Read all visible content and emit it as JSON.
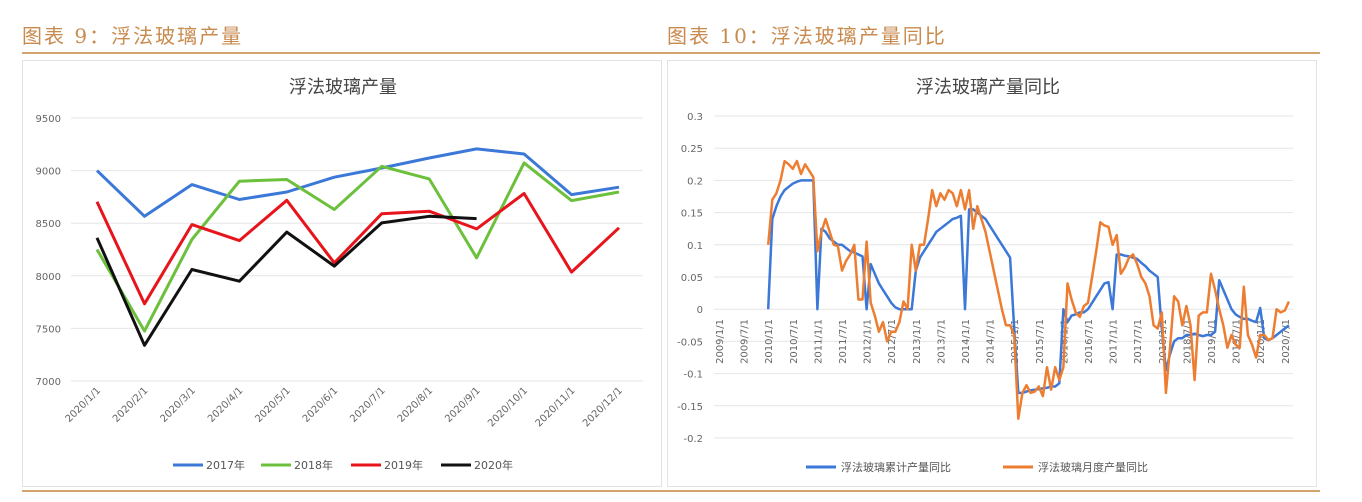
{
  "figures": [
    {
      "heading": "图表 9：浮法玻璃产量"
    },
    {
      "heading": "图表 10：浮法玻璃产量同比"
    }
  ],
  "chart_data": [
    {
      "type": "line",
      "title": "浮法玻璃产量",
      "xlabel": "",
      "ylabel": "",
      "categories": [
        "2020/1/1",
        "2020/2/1",
        "2020/3/1",
        "2020/4/1",
        "2020/5/1",
        "2020/6/1",
        "2020/7/1",
        "2020/8/1",
        "2020/9/1",
        "2020/10/1",
        "2020/11/1",
        "2020/12/1"
      ],
      "yticks": [
        "7000",
        "7500",
        "8000",
        "8500",
        "9000",
        "9500"
      ],
      "ylim": [
        7000,
        9500
      ],
      "grid": true,
      "legend": "bottom",
      "series": [
        {
          "name": "2017年",
          "color": "#3b78d8",
          "values": [
            9000,
            8566,
            8867,
            8725,
            8797,
            8937,
            9025,
            9120,
            9206,
            9158,
            8772,
            8842
          ]
        },
        {
          "name": "2018年",
          "color": "#6cc03c",
          "values": [
            8250,
            7475,
            8345,
            8899,
            8915,
            8630,
            9041,
            8921,
            8171,
            9073,
            8715,
            8797
          ]
        },
        {
          "name": "2019年",
          "color": "#e8141c",
          "values": [
            8703,
            7734,
            8487,
            8335,
            8718,
            8123,
            8589,
            8614,
            8446,
            8782,
            8035,
            8456
          ]
        },
        {
          "name": "2020年",
          "color": "#111111",
          "values": [
            8361,
            7339,
            8060,
            7949,
            8415,
            8092,
            8503,
            8566,
            8544,
            null,
            null,
            null
          ]
        }
      ]
    },
    {
      "type": "line",
      "title": "浮法玻璃产量同比",
      "xlabel": "",
      "ylabel": "",
      "xticks": [
        "2009/1/1",
        "2009/7/1",
        "2010/1/1",
        "2010/7/1",
        "2011/1/1",
        "2011/7/1",
        "2012/1/1",
        "2012/7/1",
        "2013/1/1",
        "2013/7/1",
        "2014/1/1",
        "2014/7/1",
        "2015/1/1",
        "2015/7/1",
        "2016/1/1",
        "2016/7/1",
        "2017/1/1",
        "2017/7/1",
        "2018/1/1",
        "2018/7/1",
        "2019/1/1",
        "2019/7/1",
        "2020/1/1",
        "2020/7/1"
      ],
      "yticks": [
        "-0.2",
        "-0.15",
        "-0.1",
        "-0.05",
        "0",
        "0.05",
        "0.1",
        "0.15",
        "0.2",
        "0.25",
        "0.3"
      ],
      "ylim": [
        -0.2,
        0.3
      ],
      "grid": true,
      "legend": "bottom",
      "frequency": "monthly",
      "series": [
        {
          "name": "浮法玻璃累计产量同比",
          "color": "#3b78d8",
          "values_by_year": {
            "2010": [
              0,
              0.14,
              0.16,
              0.175,
              0.185,
              0.19,
              0.195,
              0.198,
              0.2,
              0.2,
              0.2,
              0.2
            ],
            "2011": [
              0,
              0.125,
              0.12,
              0.11,
              0.105,
              0.1,
              0.1,
              0.095,
              0.09,
              0.088,
              0.085,
              0.082
            ],
            "2012": [
              0,
              0.07,
              0.055,
              0.04,
              0.03,
              0.02,
              0.01,
              0.003,
              0,
              0,
              0,
              0
            ],
            "2013": [
              0.06,
              0.08,
              0.09,
              0.1,
              0.11,
              0.12,
              0.125,
              0.13,
              0.135,
              0.14,
              0.142,
              0.145
            ],
            "2014": [
              0,
              0.155,
              0.155,
              0.15,
              0.145,
              0.14,
              0.13,
              0.12,
              0.11,
              0.1,
              0.09,
              0.08
            ],
            "2015": [
              -0.03,
              -0.13,
              -0.13,
              -0.128,
              -0.126,
              -0.125,
              -0.124,
              -0.123,
              -0.122,
              -0.12,
              -0.12,
              -0.115
            ],
            "2016": [
              0,
              -0.02,
              -0.01,
              -0.008,
              -0.005,
              -0.005,
              0,
              0.01,
              0.02,
              0.03,
              0.04,
              0.042
            ],
            "2017": [
              0,
              0.085,
              0.085,
              0.083,
              0.082,
              0.08,
              0.078,
              0.072,
              0.067,
              0.06,
              0.055,
              0.05
            ],
            "2018": [
              -0.03,
              -0.095,
              -0.07,
              -0.05,
              -0.045,
              -0.045,
              -0.04,
              -0.04,
              -0.038,
              -0.04,
              -0.042,
              -0.04
            ],
            "2019": [
              -0.04,
              -0.035,
              0.045,
              0.03,
              0.015,
              0,
              -0.008,
              -0.012,
              -0.015,
              -0.015,
              -0.018,
              -0.02
            ],
            "2020": [
              0.002,
              -0.045,
              -0.048,
              -0.045,
              -0.04,
              -0.035,
              -0.03,
              -0.025
            ]
          }
        },
        {
          "name": "浮法玻璃月度产量同比",
          "color": "#ed7d31",
          "values_by_year": {
            "2010": [
              0.1,
              0.17,
              0.18,
              0.2,
              0.23,
              0.225,
              0.218,
              0.23,
              0.21,
              0.225,
              0.215,
              0.205
            ],
            "2011": [
              0.09,
              0.12,
              0.14,
              0.12,
              0.1,
              0.098,
              0.06,
              0.075,
              0.085,
              0.1,
              0.015,
              0.015
            ],
            "2012": [
              0.105,
              0.01,
              -0.01,
              -0.035,
              -0.02,
              -0.05,
              -0.035,
              -0.035,
              -0.02,
              0.012,
              0,
              0.1
            ],
            "2013": [
              0.06,
              0.1,
              0.1,
              0.14,
              0.185,
              0.16,
              0.18,
              0.17,
              0.185,
              0.18,
              0.16,
              0.185
            ],
            "2014": [
              0.155,
              0.185,
              0.125,
              0.16,
              0.14,
              0.12,
              0.09,
              0.06,
              0.03,
              0,
              -0.025,
              -0.025
            ],
            "2015": [
              -0.04,
              -0.17,
              -0.13,
              -0.118,
              -0.13,
              -0.128,
              -0.12,
              -0.135,
              -0.09,
              -0.125,
              -0.09,
              -0.11
            ],
            "2016": [
              -0.09,
              0.04,
              0.015,
              -0.005,
              -0.012,
              0.005,
              0.01,
              0.05,
              0.09,
              0.135,
              0.13,
              0.128
            ],
            "2017": [
              0.1,
              0.115,
              0.055,
              0.065,
              0.08,
              0.085,
              0.07,
              0.05,
              0.04,
              0.02,
              -0.025,
              -0.03
            ],
            "2018": [
              -0.005,
              -0.13,
              -0.06,
              0.02,
              0.012,
              -0.025,
              0.005,
              -0.025,
              -0.11,
              -0.01,
              -0.005,
              -0.005
            ],
            "2019": [
              0.055,
              0.03,
              0,
              -0.025,
              -0.06,
              -0.04,
              -0.055,
              -0.06,
              0.035,
              -0.04,
              -0.055,
              -0.075
            ],
            "2020": [
              -0.04,
              -0.04,
              -0.048,
              -0.045,
              0,
              -0.005,
              -0.002,
              0.012
            ]
          }
        }
      ]
    }
  ]
}
